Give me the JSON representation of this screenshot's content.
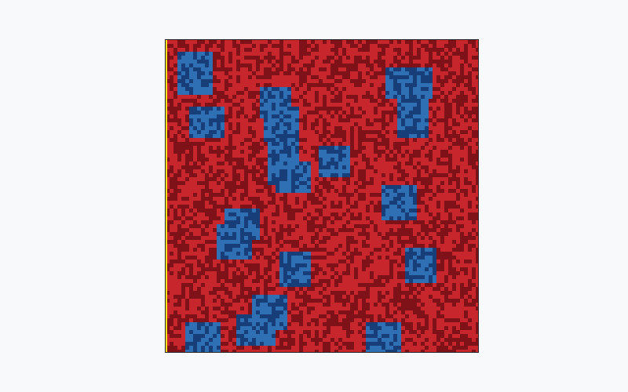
{
  "colors": {
    "background": "#f8f9fb",
    "red_state": "#c8262d",
    "red_state_dark": "#7f1118",
    "blue_state": "#2f6fb3",
    "blue_state_dark": "#173e79",
    "edge_marker": "#ffe21a",
    "border": "#2b2b2b"
  },
  "grid": {
    "rows": 80,
    "columns": 80
  },
  "blue_regions": [
    {
      "col": 3,
      "row": 3,
      "w": 9,
      "h": 11
    },
    {
      "col": 6,
      "row": 17,
      "w": 9,
      "h": 8
    },
    {
      "col": 24,
      "row": 12,
      "w": 8,
      "h": 8
    },
    {
      "col": 25,
      "row": 17,
      "w": 9,
      "h": 9
    },
    {
      "col": 26,
      "row": 24,
      "w": 8,
      "h": 13
    },
    {
      "col": 28,
      "row": 31,
      "w": 9,
      "h": 8
    },
    {
      "col": 39,
      "row": 27,
      "w": 8,
      "h": 8
    },
    {
      "col": 56,
      "row": 7,
      "w": 12,
      "h": 8
    },
    {
      "col": 59,
      "row": 13,
      "w": 8,
      "h": 12
    },
    {
      "col": 55,
      "row": 37,
      "w": 9,
      "h": 9
    },
    {
      "col": 15,
      "row": 43,
      "w": 9,
      "h": 8
    },
    {
      "col": 13,
      "row": 47,
      "w": 9,
      "h": 9
    },
    {
      "col": 29,
      "row": 54,
      "w": 8,
      "h": 9
    },
    {
      "col": 61,
      "row": 53,
      "w": 8,
      "h": 9
    },
    {
      "col": 22,
      "row": 65,
      "w": 9,
      "h": 9
    },
    {
      "col": 18,
      "row": 70,
      "w": 10,
      "h": 8
    },
    {
      "col": 5,
      "row": 72,
      "w": 9,
      "h": 8
    },
    {
      "col": 51,
      "row": 72,
      "w": 9,
      "h": 8
    }
  ]
}
